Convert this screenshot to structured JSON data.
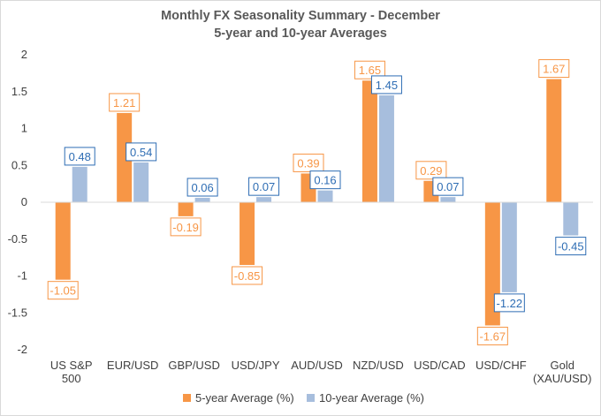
{
  "chart_data": {
    "type": "bar",
    "title": "Monthly FX Seasonality Summary - December",
    "subtitle": "5-year and 10-year Averages",
    "categories": [
      "US S&P 500",
      "EUR/USD",
      "GBP/USD",
      "USD/JPY",
      "AUD/USD",
      "NZD/USD",
      "USD/CAD",
      "USD/CHF",
      "Gold (XAU/USD)"
    ],
    "series": [
      {
        "name": "5-year Average (%)",
        "color": "#f79646",
        "values": [
          -1.05,
          1.21,
          -0.19,
          -0.85,
          0.39,
          1.65,
          0.29,
          -1.67,
          1.67
        ],
        "labels": [
          "-1.05",
          "1.21",
          "-0.19",
          "-0.85",
          "0.39",
          "1.65",
          "0.29",
          "-1.67",
          "1.67"
        ],
        "label_color": "#f79646"
      },
      {
        "name": "10-year Average (%)",
        "color": "#a7bedd",
        "values": [
          0.48,
          0.54,
          0.06,
          0.07,
          0.16,
          1.45,
          0.07,
          -1.22,
          -0.45
        ],
        "labels": [
          "0.48",
          "0.54",
          "0.06",
          "0.07",
          "0.16",
          "1.45",
          "0.07",
          "-1.22",
          "-0.45"
        ],
        "label_color": "#2e6db4"
      }
    ],
    "ylim": [
      -2,
      2
    ],
    "yticks": [
      2,
      1.5,
      1,
      0.5,
      0,
      -0.5,
      -1,
      -1.5,
      -2
    ],
    "ytick_labels": [
      "2",
      "1.5",
      "1",
      "0.5",
      "0",
      "-0.5",
      "-1",
      "-1.5",
      "-2"
    ],
    "grid": false,
    "legend_position": "bottom"
  }
}
